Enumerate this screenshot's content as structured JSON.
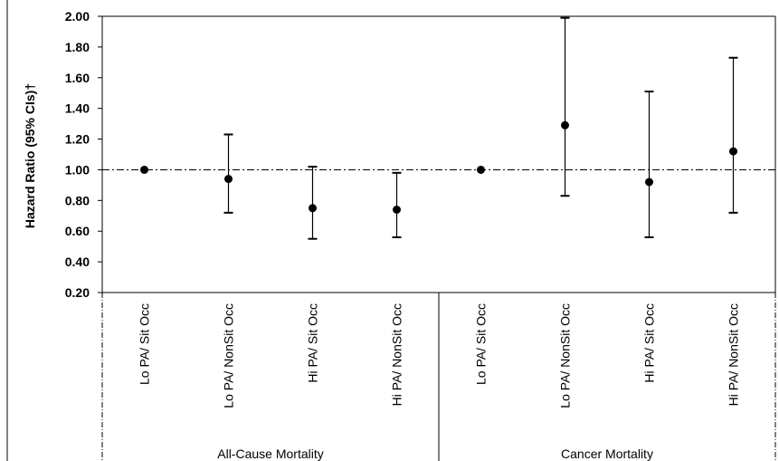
{
  "chart_data": {
    "type": "scatter",
    "ylabel": "Hazard Ratio (95% CIs)†",
    "ylim": [
      0.2,
      2.0
    ],
    "y_ticks": [
      "0.20",
      "0.40",
      "0.60",
      "0.80",
      "1.00",
      "1.20",
      "1.40",
      "1.60",
      "1.80",
      "2.00"
    ],
    "reference_line": 1.0,
    "grid": false,
    "categories": [
      "Lo PA/ Sit Occ",
      "Lo PA/ NonSit Occ",
      "Hi PA/ Sit Occ",
      "Hi PA/ NonSit Occ",
      "Lo PA/ Sit Occ",
      "Lo PA/ NonSit Occ",
      "Hi PA/ Sit Occ",
      "Hi PA/ NonSit Occ"
    ],
    "groups": [
      {
        "label": "All-Cause Mortality",
        "start": 0,
        "end": 3
      },
      {
        "label": "Cancer Mortality",
        "start": 4,
        "end": 7
      }
    ],
    "points": [
      {
        "hr": 1.0,
        "lower": null,
        "upper": null
      },
      {
        "hr": 0.94,
        "lower": 0.72,
        "upper": 1.23
      },
      {
        "hr": 0.75,
        "lower": 0.55,
        "upper": 1.02
      },
      {
        "hr": 0.74,
        "lower": 0.56,
        "upper": 0.98
      },
      {
        "hr": 1.0,
        "lower": null,
        "upper": null
      },
      {
        "hr": 1.29,
        "lower": 0.83,
        "upper": 1.99
      },
      {
        "hr": 0.92,
        "lower": 0.56,
        "upper": 1.51
      },
      {
        "hr": 1.12,
        "lower": 0.72,
        "upper": 1.73
      }
    ]
  }
}
